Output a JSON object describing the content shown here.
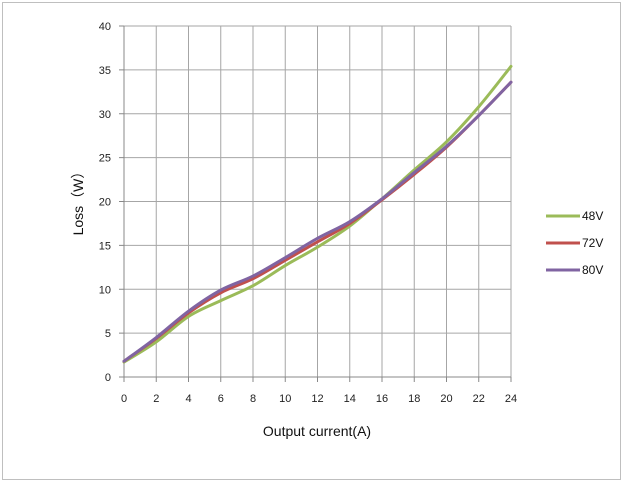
{
  "chart_data": {
    "type": "line",
    "title": "",
    "xlabel": "Output current(A)",
    "ylabel": "Loss（W）",
    "x": [
      0,
      2,
      4,
      6,
      8,
      10,
      12,
      14,
      16,
      18,
      20,
      22,
      24
    ],
    "xticks": [
      "0",
      "2",
      "4",
      "6",
      "8",
      "10",
      "12",
      "14",
      "16",
      "18",
      "20",
      "22",
      "24"
    ],
    "yticks": [
      "0",
      "5",
      "10",
      "15",
      "20",
      "25",
      "30",
      "35",
      "40"
    ],
    "xlim": [
      0,
      24
    ],
    "ylim": [
      0,
      40
    ],
    "grid": true,
    "legend_position": "right",
    "series": [
      {
        "name": "48V",
        "color": "#9bbb59",
        "values": [
          1.7,
          4.0,
          6.9,
          8.7,
          10.4,
          12.7,
          14.8,
          17.2,
          20.3,
          23.6,
          26.8,
          30.8,
          35.4
        ]
      },
      {
        "name": "72V",
        "color": "#c0504d",
        "values": [
          1.8,
          4.4,
          7.3,
          9.6,
          11.2,
          13.3,
          15.4,
          17.5,
          20.2,
          23.1,
          26.2,
          29.8,
          33.6
        ]
      },
      {
        "name": "80V",
        "color": "#8064a2",
        "values": [
          1.8,
          4.5,
          7.5,
          9.9,
          11.5,
          13.6,
          15.8,
          17.7,
          20.3,
          23.3,
          26.3,
          29.8,
          33.6
        ]
      }
    ]
  }
}
